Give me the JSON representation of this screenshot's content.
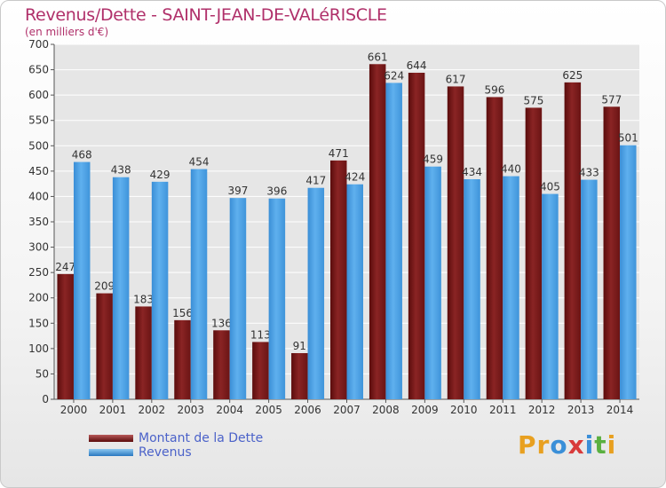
{
  "title": "Revenus/Dette - SAINT-JEAN-DE-VALéRISCLE",
  "subtitle": "(en milliers d'€)",
  "legend": [
    {
      "label": "Montant de la Dette",
      "color": "#7a1a1a"
    },
    {
      "label": "Revenus",
      "color": "#4da0e0"
    }
  ],
  "logo": {
    "text": "Proxiti",
    "letters": [
      "P",
      "r",
      "o",
      "x",
      "i",
      "t",
      "i"
    ],
    "colors": [
      "#e8a020",
      "#e8a020",
      "#3a8fd8",
      "#d83a3a",
      "#3a8fd8",
      "#5ab040",
      "#e8a020"
    ]
  },
  "chart_data": {
    "type": "bar",
    "categories": [
      "2000",
      "2001",
      "2002",
      "2003",
      "2004",
      "2005",
      "2006",
      "2007",
      "2008",
      "2009",
      "2010",
      "2011",
      "2012",
      "2013",
      "2014"
    ],
    "series": [
      {
        "name": "Montant de la Dette",
        "color": "#7a1a1a",
        "values": [
          247,
          209,
          183,
          156,
          136,
          113,
          91,
          471,
          661,
          644,
          617,
          596,
          575,
          625,
          577
        ]
      },
      {
        "name": "Revenus",
        "color": "#4da0e0",
        "values": [
          468,
          438,
          429,
          454,
          397,
          396,
          417,
          424,
          624,
          459,
          434,
          440,
          405,
          433,
          501
        ]
      }
    ],
    "ylim": [
      0,
      700
    ],
    "yticks": [
      0,
      50,
      100,
      150,
      200,
      250,
      300,
      350,
      400,
      450,
      500,
      550,
      600,
      650,
      700
    ],
    "grid": true,
    "legend_position": "bottom-left"
  }
}
